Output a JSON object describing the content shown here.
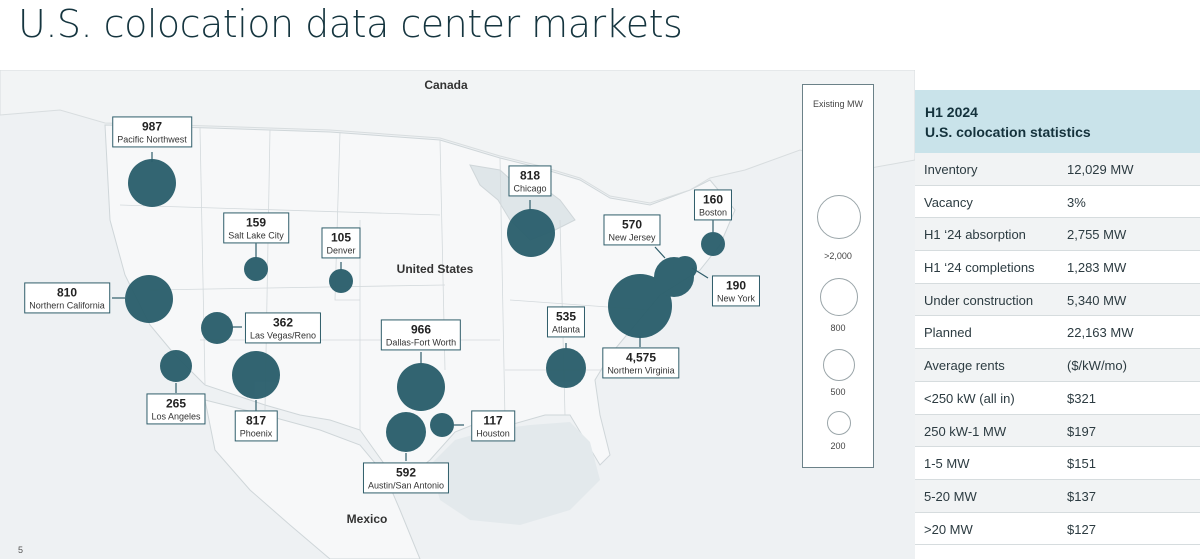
{
  "page": {
    "title": "U.S. colocation data center markets",
    "page_number": "5"
  },
  "map": {
    "countries": [
      "Canada",
      "United States",
      "Mexico"
    ],
    "bubble_color": "#2b5f6c",
    "markets": [
      {
        "name": "Pacific Northwest",
        "mw": "987"
      },
      {
        "name": "Salt Lake City",
        "mw": "159"
      },
      {
        "name": "Denver",
        "mw": "105"
      },
      {
        "name": "Chicago",
        "mw": "818"
      },
      {
        "name": "Boston",
        "mw": "160"
      },
      {
        "name": "New Jersey",
        "mw": "570"
      },
      {
        "name": "New York",
        "mw": "190"
      },
      {
        "name": "Northern California",
        "mw": "810"
      },
      {
        "name": "Las Vegas/Reno",
        "mw": "362"
      },
      {
        "name": "Dallas-Fort Worth",
        "mw": "966"
      },
      {
        "name": "Atlanta",
        "mw": "535"
      },
      {
        "name": "Northern Virginia",
        "mw": "4,575"
      },
      {
        "name": "Los Angeles",
        "mw": "265"
      },
      {
        "name": "Phoenix",
        "mw": "817"
      },
      {
        "name": "Houston",
        "mw": "117"
      },
      {
        "name": "Austin/San Antonio",
        "mw": "592"
      }
    ]
  },
  "legend": {
    "title": "Existing MW",
    "items": [
      ">2,000",
      "800",
      "500",
      "200"
    ]
  },
  "stats": {
    "header_line1": "H1 2024",
    "header_line2": "U.S. colocation statistics",
    "header_color": "#c9e3ea",
    "rows": [
      {
        "label": "Inventory",
        "value": "12,029 MW"
      },
      {
        "label": "Vacancy",
        "value": "3%"
      },
      {
        "label": "H1 ‘24 absorption",
        "value": "2,755 MW"
      },
      {
        "label": "H1 ‘24 completions",
        "value": "1,283 MW"
      },
      {
        "label": "Under construction",
        "value": "5,340 MW"
      },
      {
        "label": "Planned",
        "value": "22,163 MW"
      },
      {
        "label": "Average rents",
        "value": "($/kW/mo)"
      },
      {
        "label": "<250 kW (all in)",
        "value": "$321"
      },
      {
        "label": "250 kW-1 MW",
        "value": "$197"
      },
      {
        "label": "1-5 MW",
        "value": "$151"
      },
      {
        "label": "5-20 MW",
        "value": "$137"
      },
      {
        "label": ">20 MW",
        "value": "$127"
      }
    ]
  }
}
